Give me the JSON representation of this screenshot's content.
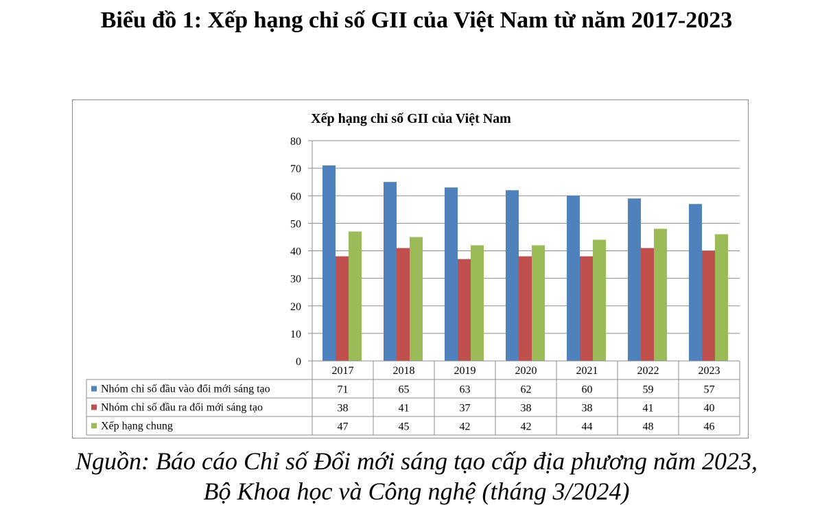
{
  "page_title": "Biểu đồ 1: Xếp hạng chỉ số GII của Việt Nam từ năm 2017-2023",
  "source": {
    "line1": "Nguồn: Báo cáo Chỉ số Đổi mới sáng tạo cấp địa phương năm 2023,",
    "line2": "Bộ Khoa học và Công nghệ (tháng 3/2024)"
  },
  "chart_data": {
    "type": "bar",
    "title": "Xếp hạng chỉ số GII của Việt Nam",
    "categories": [
      "2017",
      "2018",
      "2019",
      "2020",
      "2021",
      "2022",
      "2023"
    ],
    "series": [
      {
        "name": "Nhóm chỉ số đầu vào đổi mới sáng tạo",
        "color": "#4F81BD",
        "values": [
          71,
          65,
          63,
          62,
          60,
          59,
          57
        ]
      },
      {
        "name": "Nhóm chỉ số đầu ra đổi mới sáng tạo",
        "color": "#C0504D",
        "values": [
          38,
          41,
          37,
          38,
          38,
          41,
          40
        ]
      },
      {
        "name": "Xếp hạng chung",
        "color": "#9BBB59",
        "values": [
          47,
          45,
          42,
          42,
          44,
          48,
          46
        ]
      }
    ],
    "ylim": [
      0,
      80
    ],
    "yticks": [
      0,
      10,
      20,
      30,
      40,
      50,
      60,
      70,
      80
    ],
    "grid": true,
    "legend": "data-table"
  }
}
